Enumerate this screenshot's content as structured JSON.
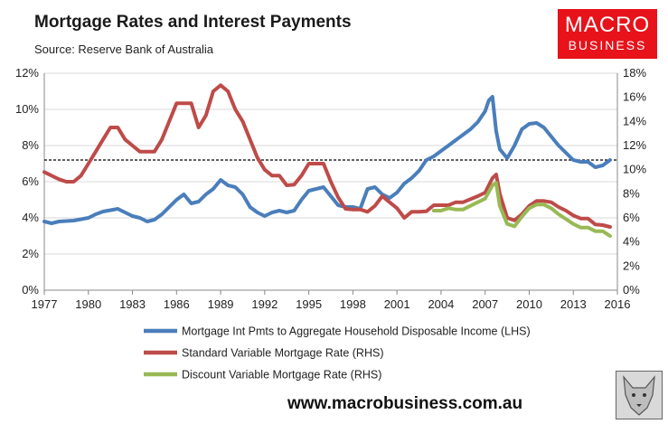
{
  "header": {
    "title": "Mortgage Rates and Interest Payments",
    "subtitle": "Source: Reserve Bank of Australia"
  },
  "logo": {
    "line1": "MACRO",
    "line2": "BUSINESS"
  },
  "footer": {
    "url": "www.macrobusiness.com.au"
  },
  "colors": {
    "int_pmts": "#4a7ebb",
    "standard": "#be4b48",
    "discount": "#98b954",
    "reference_line": "#000000",
    "logo_bg": "#e8121a"
  },
  "chart_data": {
    "type": "line",
    "title": "Mortgage Rates and Interest Payments",
    "x_ticks": [
      "1977",
      "1980",
      "1983",
      "1986",
      "1989",
      "1992",
      "1995",
      "1998",
      "2001",
      "2004",
      "2007",
      "2010",
      "2013",
      "2016"
    ],
    "xlim": [
      1977,
      2016
    ],
    "left_axis": {
      "ticks": [
        "0%",
        "2%",
        "4%",
        "6%",
        "8%",
        "10%",
        "12%"
      ],
      "ylim": [
        0,
        12
      ]
    },
    "right_axis": {
      "ticks": [
        "0%",
        "2%",
        "4%",
        "6%",
        "8%",
        "10%",
        "12%",
        "14%",
        "16%",
        "18%"
      ],
      "ylim": [
        0,
        18
      ]
    },
    "grid": "horizontal",
    "legend_placement": "bottom",
    "reference_line": {
      "axis": "LHS",
      "value": 7.2,
      "style": "dashed"
    },
    "series": [
      {
        "name": "Mortgage Int Pmts to Aggregate Household Disposable Income (LHS)",
        "axis": "LHS",
        "x": [
          1977,
          1977.5,
          1978,
          1979,
          1980,
          1980.5,
          1981,
          1982,
          1982.5,
          1983,
          1983.5,
          1984,
          1984.5,
          1985,
          1985.5,
          1986,
          1986.5,
          1987,
          1987.5,
          1988,
          1988.5,
          1989,
          1989.5,
          1990,
          1990.5,
          1991,
          1991.5,
          1992,
          1992.5,
          1993,
          1993.5,
          1994,
          1994.5,
          1995,
          1995.5,
          1996,
          1996.5,
          1997,
          1997.5,
          1998,
          1998.5,
          1999,
          1999.5,
          2000,
          2000.5,
          2001,
          2001.5,
          2002,
          2002.5,
          2003,
          2003.5,
          2004,
          2004.5,
          2005,
          2005.5,
          2006,
          2006.5,
          2007,
          2007.25,
          2007.5,
          2007.75,
          2008,
          2008.5,
          2009,
          2009.5,
          2010,
          2010.5,
          2011,
          2011.5,
          2012,
          2012.5,
          2013,
          2013.5,
          2014,
          2014.5,
          2015,
          2015.5
        ],
        "values": [
          3.8,
          3.7,
          3.8,
          3.85,
          4.0,
          4.2,
          4.35,
          4.5,
          4.3,
          4.1,
          4.0,
          3.8,
          3.9,
          4.2,
          4.6,
          5.0,
          5.3,
          4.8,
          4.9,
          5.3,
          5.6,
          6.1,
          5.8,
          5.7,
          5.3,
          4.6,
          4.3,
          4.1,
          4.3,
          4.4,
          4.3,
          4.4,
          5.0,
          5.5,
          5.6,
          5.7,
          5.2,
          4.7,
          4.6,
          4.6,
          4.5,
          5.6,
          5.7,
          5.3,
          5.1,
          5.4,
          5.9,
          6.2,
          6.6,
          7.2,
          7.4,
          7.7,
          8.0,
          8.3,
          8.6,
          8.9,
          9.3,
          9.9,
          10.5,
          10.7,
          8.8,
          7.8,
          7.3,
          8.0,
          8.9,
          9.2,
          9.25,
          9.0,
          8.5,
          8.0,
          7.6,
          7.2,
          7.1,
          7.1,
          6.8,
          6.9,
          7.2
        ]
      },
      {
        "name": "Standard Variable Mortgage Rate (RHS)",
        "axis": "RHS",
        "x": [
          1977,
          1977.5,
          1978,
          1978.5,
          1979,
          1979.5,
          1980,
          1980.5,
          1981,
          1981.5,
          1982,
          1982.5,
          1983,
          1983.5,
          1984,
          1984.5,
          1985,
          1985.5,
          1986,
          1986.5,
          1987,
          1987.5,
          1988,
          1988.5,
          1989,
          1989.5,
          1990,
          1990.5,
          1991,
          1991.5,
          1992,
          1992.5,
          1993,
          1993.5,
          1994,
          1994.5,
          1995,
          1995.5,
          1996,
          1996.5,
          1997,
          1997.5,
          1998,
          1998.5,
          1999,
          1999.5,
          2000,
          2000.5,
          2001,
          2001.5,
          2002,
          2002.5,
          2003,
          2003.5,
          2004,
          2004.5,
          2005,
          2005.5,
          2006,
          2006.5,
          2007,
          2007.5,
          2007.75,
          2008,
          2008.5,
          2009,
          2009.5,
          2010,
          2010.5,
          2011,
          2011.5,
          2012,
          2012.5,
          2013,
          2013.5,
          2014,
          2014.5,
          2015,
          2015.5
        ],
        "values": [
          9.8,
          9.5,
          9.2,
          9.0,
          9.0,
          9.5,
          10.5,
          11.5,
          12.5,
          13.5,
          13.5,
          12.5,
          12.0,
          11.5,
          11.5,
          11.5,
          12.5,
          14.0,
          15.5,
          15.5,
          15.5,
          13.5,
          14.5,
          16.5,
          17.0,
          16.5,
          15.0,
          14.0,
          12.5,
          11.0,
          10.0,
          9.5,
          9.5,
          8.7,
          8.75,
          9.5,
          10.5,
          10.5,
          10.5,
          9.0,
          7.7,
          6.75,
          6.7,
          6.7,
          6.5,
          7.0,
          7.8,
          7.3,
          6.8,
          6.0,
          6.5,
          6.5,
          6.55,
          7.05,
          7.05,
          7.05,
          7.3,
          7.3,
          7.55,
          7.8,
          8.1,
          9.3,
          9.6,
          8.0,
          6.0,
          5.8,
          6.3,
          7.0,
          7.4,
          7.4,
          7.3,
          6.9,
          6.6,
          6.2,
          5.95,
          5.95,
          5.45,
          5.4,
          5.25
        ]
      },
      {
        "name": "Discount Variable Mortgage Rate (RHS)",
        "axis": "RHS",
        "x": [
          2003.5,
          2004,
          2004.5,
          2005,
          2005.5,
          2006,
          2006.5,
          2007,
          2007.5,
          2007.75,
          2008,
          2008.5,
          2009,
          2009.5,
          2010,
          2010.5,
          2011,
          2011.5,
          2012,
          2012.5,
          2013,
          2013.5,
          2014,
          2014.5,
          2015,
          2015.5
        ],
        "values": [
          6.6,
          6.6,
          6.8,
          6.7,
          6.7,
          7.0,
          7.3,
          7.6,
          8.7,
          8.9,
          7.0,
          5.5,
          5.3,
          6.1,
          6.8,
          7.1,
          7.1,
          6.8,
          6.3,
          5.9,
          5.5,
          5.2,
          5.2,
          4.9,
          4.9,
          4.5
        ]
      }
    ]
  }
}
